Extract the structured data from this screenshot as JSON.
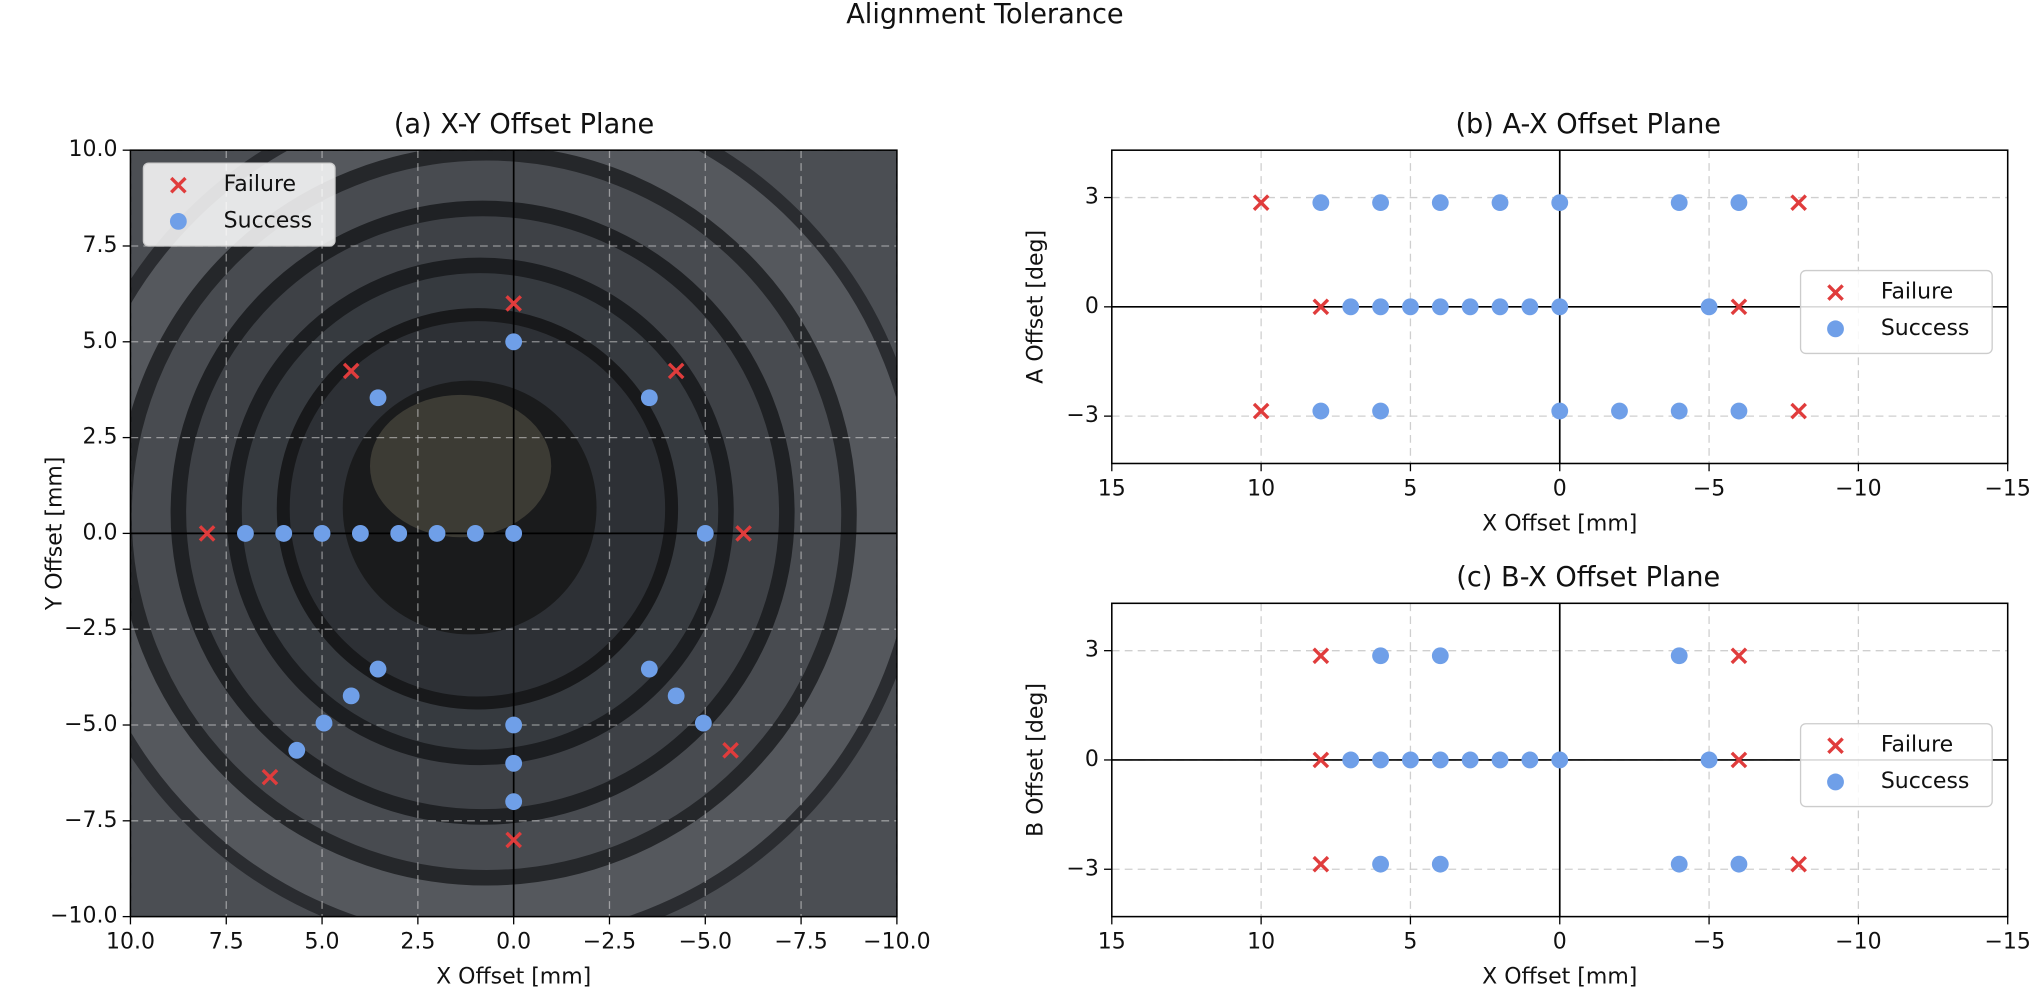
{
  "title": "Alignment Tolerance",
  "chart_data": [
    {
      "type": "scatter",
      "title": "(a) X-Y Offset Plane",
      "xlabel": "X Offset [mm]",
      "ylabel": "Y Offset [mm]",
      "xlim": [
        10,
        -10
      ],
      "ylim": [
        -10,
        10
      ],
      "xticks": [
        {
          "value": 10,
          "label": "10.0"
        },
        {
          "value": 7.5,
          "label": "7.5"
        },
        {
          "value": 5,
          "label": "5.0"
        },
        {
          "value": 2.5,
          "label": "2.5"
        },
        {
          "value": 0,
          "label": "0.0"
        },
        {
          "value": -2.5,
          "label": "−2.5"
        },
        {
          "value": -5,
          "label": "−5.0"
        },
        {
          "value": -7.5,
          "label": "−7.5"
        },
        {
          "value": -10,
          "label": "−10.0"
        }
      ],
      "yticks": [
        {
          "value": 10,
          "label": "10.0"
        },
        {
          "value": 7.5,
          "label": "7.5"
        },
        {
          "value": 5,
          "label": "5.0"
        },
        {
          "value": 2.5,
          "label": "2.5"
        },
        {
          "value": 0,
          "label": "0.0"
        },
        {
          "value": -2.5,
          "label": "−2.5"
        },
        {
          "value": -5,
          "label": "−5.0"
        },
        {
          "value": -7.5,
          "label": "−7.5"
        },
        {
          "value": -10,
          "label": "−10.0"
        }
      ],
      "grid": true,
      "legend": "upper left",
      "series": [
        {
          "name": "Failure",
          "color": "#e03c3c",
          "marker": "x",
          "x": [
            8,
            -6,
            0,
            4.24,
            -4.24,
            0,
            6.36,
            -5.66
          ],
          "values": [
            0,
            0,
            6,
            4.24,
            4.24,
            -8,
            -6.36,
            -5.66
          ]
        },
        {
          "name": "Success",
          "color": "#6f9fe8",
          "marker": "o",
          "x": [
            0,
            3.54,
            -3.54,
            7,
            6,
            5,
            4,
            3,
            2,
            1,
            0,
            -5,
            3.54,
            4.24,
            4.95,
            5.66,
            -3.54,
            -4.24,
            -4.95,
            0,
            0,
            0
          ],
          "values": [
            5,
            3.54,
            3.54,
            0,
            0,
            0,
            0,
            0,
            0,
            0,
            0,
            0,
            -3.54,
            -4.24,
            -4.95,
            -5.66,
            -3.54,
            -4.24,
            -4.95,
            -5,
            -6,
            -7
          ]
        }
      ]
    },
    {
      "type": "scatter",
      "title": "(b) A-X Offset Plane",
      "xlabel": "X Offset [mm]",
      "ylabel": "A Offset [deg]",
      "xlim": [
        15,
        -15
      ],
      "ylim": [
        -4.3,
        4.3
      ],
      "xticks": [
        15,
        10,
        5,
        0,
        {
          "value": -5,
          "label": "−5"
        },
        {
          "value": -10,
          "label": "−10"
        },
        {
          "value": -15,
          "label": "−15"
        }
      ],
      "yticks": [
        3,
        0,
        {
          "value": -3,
          "label": "−3"
        }
      ],
      "grid": true,
      "legend": "center right",
      "series": [
        {
          "name": "Failure",
          "color": "#e03c3c",
          "marker": "x",
          "x": [
            10,
            -8,
            8,
            -6,
            10,
            -8
          ],
          "values": [
            2.86,
            2.86,
            0,
            0,
            -2.86,
            -2.86
          ]
        },
        {
          "name": "Success",
          "color": "#6f9fe8",
          "marker": "o",
          "x": [
            8,
            6,
            4,
            2,
            0,
            -4,
            -6,
            7,
            6,
            5,
            4,
            3,
            2,
            1,
            0,
            -5,
            8,
            6,
            0,
            -2,
            -4,
            -6
          ],
          "values": [
            2.86,
            2.86,
            2.86,
            2.86,
            2.86,
            2.86,
            2.86,
            0,
            0,
            0,
            0,
            0,
            0,
            0,
            0,
            0,
            -2.86,
            -2.86,
            -2.86,
            -2.86,
            -2.86,
            -2.86
          ]
        }
      ]
    },
    {
      "type": "scatter",
      "title": "(c) B-X Offset Plane",
      "xlabel": "X Offset [mm]",
      "ylabel": "B Offset [deg]",
      "xlim": [
        15,
        -15
      ],
      "ylim": [
        -4.3,
        4.3
      ],
      "xticks": [
        15,
        10,
        5,
        0,
        {
          "value": -5,
          "label": "−5"
        },
        {
          "value": -10,
          "label": "−10"
        },
        {
          "value": -15,
          "label": "−15"
        }
      ],
      "yticks": [
        3,
        0,
        {
          "value": -3,
          "label": "−3"
        }
      ],
      "grid": true,
      "legend": "center right",
      "series": [
        {
          "name": "Failure",
          "color": "#e03c3c",
          "marker": "x",
          "x": [
            8,
            -6,
            8,
            -6,
            8,
            -8
          ],
          "values": [
            2.86,
            2.86,
            0,
            0,
            -2.86,
            -2.86
          ]
        },
        {
          "name": "Success",
          "color": "#6f9fe8",
          "marker": "o",
          "x": [
            6,
            4,
            -4,
            7,
            6,
            5,
            4,
            3,
            2,
            1,
            0,
            -5,
            6,
            4,
            -4,
            -6
          ],
          "values": [
            2.86,
            2.86,
            2.86,
            0,
            0,
            0,
            0,
            0,
            0,
            0,
            0,
            0,
            -2.86,
            -2.86,
            -2.86,
            -2.86
          ]
        }
      ]
    }
  ]
}
